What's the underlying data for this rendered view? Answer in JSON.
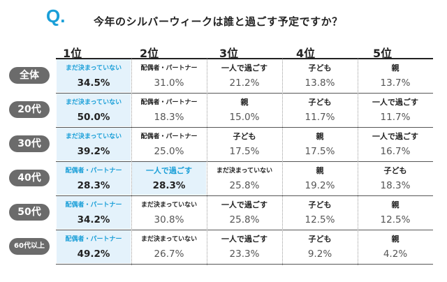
{
  "title": {
    "q": "Q.",
    "question": "今年のシルバーウィークは誰と過ごす予定ですか？"
  },
  "colors": {
    "accent": "#1a9fd8",
    "highlight_bg": "#e4f2fb",
    "label_bg": "#6b6b6b"
  },
  "chart_data": {
    "type": "table",
    "columns": [
      "1位",
      "2位",
      "3位",
      "4位",
      "5位"
    ],
    "rows": [
      {
        "label": "全体",
        "cells": [
          {
            "name": "まだ決まっていない",
            "value": "34.5%"
          },
          {
            "name": "配偶者・パートナー",
            "value": "31.0%"
          },
          {
            "name": "一人で過ごす",
            "value": "21.2%"
          },
          {
            "name": "子ども",
            "value": "13.8%"
          },
          {
            "name": "親",
            "value": "13.7%"
          }
        ]
      },
      {
        "label": "20代",
        "cells": [
          {
            "name": "まだ決まっていない",
            "value": "50.0%"
          },
          {
            "name": "配偶者・パートナー",
            "value": "18.3%"
          },
          {
            "name": "親",
            "value": "15.0%"
          },
          {
            "name": "子ども",
            "value": "11.7%"
          },
          {
            "name": "一人で過ごす",
            "value": "11.7%"
          }
        ]
      },
      {
        "label": "30代",
        "cells": [
          {
            "name": "まだ決まっていない",
            "value": "39.2%"
          },
          {
            "name": "配偶者・パートナー",
            "value": "25.0%"
          },
          {
            "name": "子ども",
            "value": "17.5%"
          },
          {
            "name": "親",
            "value": "17.5%"
          },
          {
            "name": "一人で過ごす",
            "value": "16.7%"
          }
        ]
      },
      {
        "label": "40代",
        "cells": [
          {
            "name": "配偶者・パートナー",
            "value": "28.3%"
          },
          {
            "name": "一人で過ごす",
            "value": "28.3%"
          },
          {
            "name": "まだ決まっていない",
            "value": "25.8%"
          },
          {
            "name": "親",
            "value": "19.2%"
          },
          {
            "name": "子ども",
            "value": "18.3%"
          }
        ]
      },
      {
        "label": "50代",
        "cells": [
          {
            "name": "配偶者・パートナー",
            "value": "34.2%"
          },
          {
            "name": "まだ決まっていない",
            "value": "30.8%"
          },
          {
            "name": "一人で過ごす",
            "value": "25.8%"
          },
          {
            "name": "子ども",
            "value": "12.5%"
          },
          {
            "name": "親",
            "value": "12.5%"
          }
        ]
      },
      {
        "label": "60代以上",
        "cells": [
          {
            "name": "配偶者・パートナー",
            "value": "49.2%"
          },
          {
            "name": "まだ決まっていない",
            "value": "26.7%"
          },
          {
            "name": "一人で過ごす",
            "value": "23.3%"
          },
          {
            "name": "子ども",
            "value": "9.2%"
          },
          {
            "name": "親",
            "value": "4.2%"
          }
        ]
      }
    ]
  }
}
